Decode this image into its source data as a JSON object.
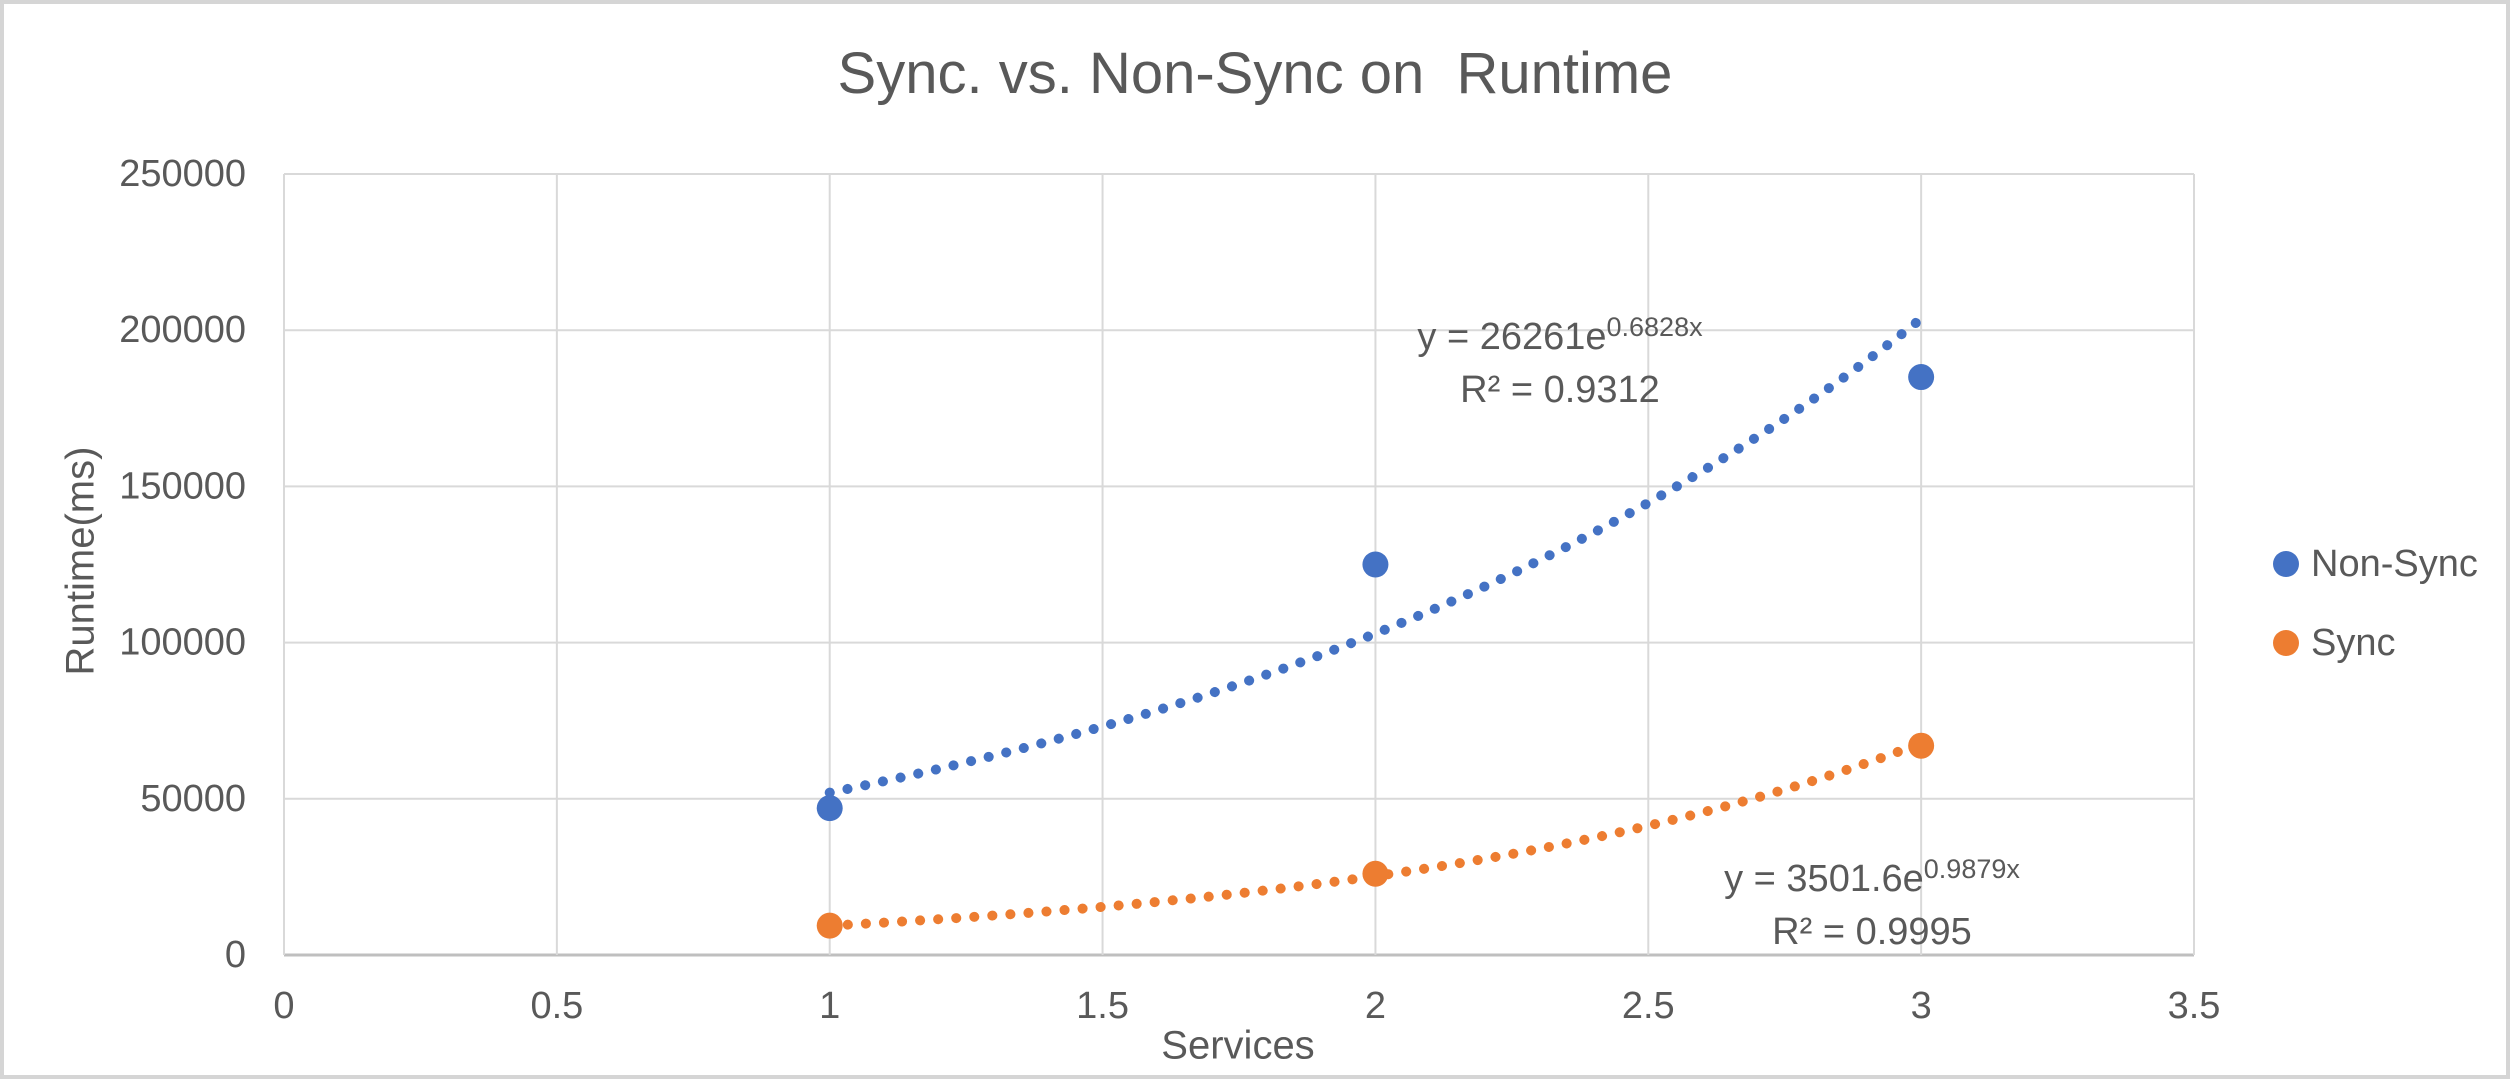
{
  "chart_data": {
    "type": "scatter",
    "title": "Sync. vs. Non-Sync on  Runtime",
    "xlabel": "Services",
    "ylabel": "Runtime(ms)",
    "xlim": [
      0,
      3.5
    ],
    "ylim": [
      0,
      250000
    ],
    "x_ticks": [
      0,
      0.5,
      1,
      1.5,
      2,
      2.5,
      3,
      3.5
    ],
    "y_ticks": [
      0,
      50000,
      100000,
      150000,
      200000,
      250000
    ],
    "grid": true,
    "legend_position": "right",
    "x": [
      1,
      2,
      3
    ],
    "series": [
      {
        "name": "Non-Sync",
        "color": "#4472C4",
        "values": [
          47000,
          125000,
          185000
        ],
        "trendline": {
          "kind": "exponential",
          "a": 26261,
          "b": 0.6828,
          "x_start": 1,
          "x_end": 3,
          "equation_prefix": "y = 26261e",
          "equation_exponent": "0.6828x",
          "r2": "R² = 0.9312"
        }
      },
      {
        "name": "Sync",
        "color": "#ED7D31",
        "values": [
          9400,
          26000,
          67000
        ],
        "trendline": {
          "kind": "exponential",
          "a": 3501.6,
          "b": 0.9879,
          "x_start": 1,
          "x_end": 3,
          "equation_prefix": "y = 3501.6e",
          "equation_exponent": "0.9879x",
          "r2": "R² = 0.9995"
        }
      }
    ],
    "colors": {
      "text": "#595959",
      "gridline": "#D9D9D9",
      "axis_line": "#BFBFBF",
      "frame_border": "#D5D5D5"
    }
  }
}
